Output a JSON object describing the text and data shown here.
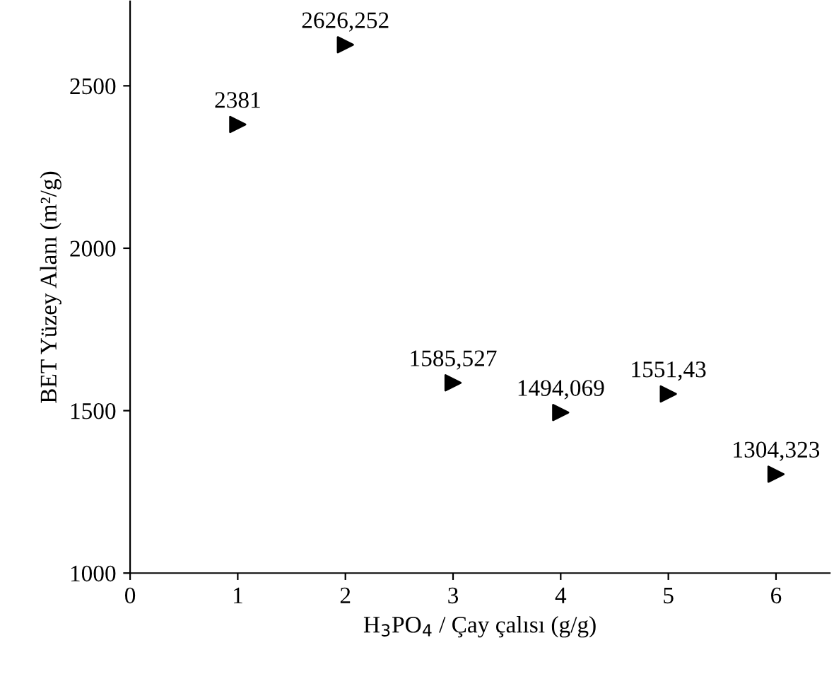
{
  "chart_data": {
    "type": "scatter",
    "xlabel": "H$_{3}$PO$_{4}$ / Çay çalısı (g/g)",
    "ylabel": "BET Yüzey Alanı (m²/g)",
    "x": [
      1,
      2,
      3,
      4,
      5,
      6
    ],
    "series": [
      {
        "color": "#000000",
        "values": [
          2381,
          2626.252,
          1585.527,
          1494.069,
          1551.43,
          1304.323
        ],
        "value_labels": [
          "2381",
          "2626,252",
          "1585,527",
          "1494,069",
          "1551,43",
          "1304,323"
        ]
      }
    ],
    "marker": "triangle",
    "xlim": [
      0,
      6.5
    ],
    "ylim": [
      1000,
      2760
    ],
    "xticks": [
      0,
      1,
      2,
      3,
      4,
      5,
      6
    ],
    "yticks": [
      1000,
      1500,
      2000,
      2500
    ],
    "grid": false,
    "legend": false
  }
}
